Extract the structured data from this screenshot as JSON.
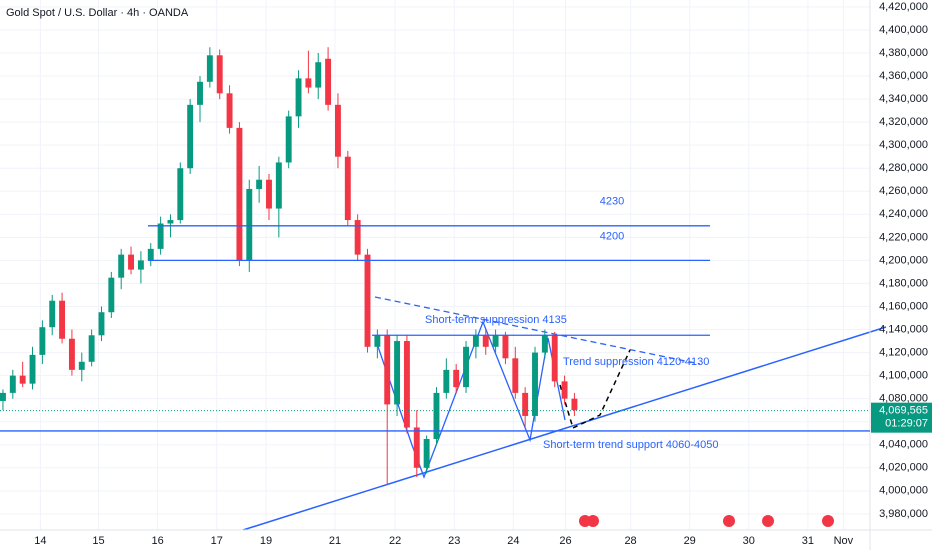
{
  "chart_data": {
    "type": "candlestick",
    "title": "Gold Spot / U.S. Dollar · 4h · OANDA",
    "up_color": "#089981",
    "down_color": "#f23645",
    "line_color": "#2962ff",
    "grid": true,
    "open": [
      4078000,
      4085000,
      4100000,
      4093000,
      4118000,
      4142000,
      4165000,
      4132000,
      4105000,
      4112000,
      4135000,
      4155000,
      4185000,
      4205000,
      4192000,
      4200000,
      4210000,
      4232000,
      4235000,
      4280000,
      4335000,
      4355000,
      4378000,
      4345000,
      4315000,
      4200000,
      4262000,
      4270000,
      4245000,
      4285000,
      4325000,
      4358000,
      4350000,
      4375000,
      4335000,
      4290000,
      4235000,
      4205000,
      4125000,
      4135000,
      4075000,
      4130000,
      4055000,
      4020000,
      4045000,
      4085000,
      4105000,
      4090000,
      4125000,
      4135000,
      4125000,
      4135000,
      4115000,
      4085000,
      4065000,
      4120000,
      4135000,
      4095000,
      4080000
    ],
    "high": [
      4088000,
      4105000,
      4112000,
      4125000,
      4148000,
      4170000,
      4172000,
      4140000,
      4120000,
      4140000,
      4160000,
      4190000,
      4210000,
      4212000,
      4208000,
      4215000,
      4238000,
      4240000,
      4285000,
      4340000,
      4360000,
      4385000,
      4383000,
      4352000,
      4320000,
      4270000,
      4282000,
      4275000,
      4290000,
      4330000,
      4365000,
      4382000,
      4380000,
      4385000,
      4345000,
      4295000,
      4240000,
      4210000,
      4140000,
      4140000,
      4135000,
      4135000,
      4070000,
      4048000,
      4090000,
      4115000,
      4110000,
      4130000,
      4140000,
      4140000,
      4140000,
      4138000,
      4125000,
      4090000,
      4125000,
      4140000,
      4138000,
      4100000,
      4085000
    ],
    "low": [
      4070000,
      4080000,
      4090000,
      4088000,
      4110000,
      4135000,
      4128000,
      4100000,
      4095000,
      4108000,
      4130000,
      4150000,
      4175000,
      4188000,
      4180000,
      4195000,
      4205000,
      4220000,
      4232000,
      4275000,
      4320000,
      4350000,
      4340000,
      4310000,
      4195000,
      4190000,
      4250000,
      4235000,
      4220000,
      4280000,
      4315000,
      4345000,
      4340000,
      4330000,
      4280000,
      4230000,
      4200000,
      4120000,
      4115000,
      4005000,
      4065000,
      4050000,
      4012000,
      4015000,
      4040000,
      4080000,
      4085000,
      4085000,
      4115000,
      4118000,
      4120000,
      4110000,
      4080000,
      4055000,
      4060000,
      4115000,
      4090000,
      4075000,
      4065000
    ],
    "close": [
      4085000,
      4100000,
      4093000,
      4118000,
      4142000,
      4165000,
      4132000,
      4105000,
      4112000,
      4135000,
      4155000,
      4185000,
      4205000,
      4192000,
      4200000,
      4210000,
      4232000,
      4235000,
      4280000,
      4335000,
      4355000,
      4378000,
      4345000,
      4315000,
      4200000,
      4262000,
      4270000,
      4245000,
      4285000,
      4325000,
      4358000,
      4350000,
      4372000,
      4335000,
      4290000,
      4235000,
      4205000,
      4125000,
      4135000,
      4075000,
      4130000,
      4055000,
      4020000,
      4045000,
      4085000,
      4105000,
      4090000,
      4125000,
      4135000,
      4125000,
      4135000,
      4115000,
      4085000,
      4065000,
      4120000,
      4135000,
      4095000,
      4080000,
      4070000
    ],
    "xlim": [
      -0.3,
      88
    ],
    "xticks": [
      {
        "value": 3.8,
        "label": "14"
      },
      {
        "value": 9.7,
        "label": "15"
      },
      {
        "value": 15.7,
        "label": "16"
      },
      {
        "value": 21.7,
        "label": "17"
      },
      {
        "value": 26.7,
        "label": "19"
      },
      {
        "value": 33.7,
        "label": "21"
      },
      {
        "value": 39.8,
        "label": "22"
      },
      {
        "value": 45.8,
        "label": "23"
      },
      {
        "value": 51.8,
        "label": "24"
      },
      {
        "value": 57.1,
        "label": "26"
      },
      {
        "value": 63.7,
        "label": "28"
      },
      {
        "value": 69.7,
        "label": "29"
      },
      {
        "value": 75.7,
        "label": "30"
      },
      {
        "value": 81.7,
        "label": "31"
      },
      {
        "value": 85.3,
        "label": "Nov"
      }
    ],
    "ylim": [
      3966000,
      4426000
    ],
    "yticks": [
      {
        "value": 3980000,
        "label": "3,980,000"
      },
      {
        "value": 4000000,
        "label": "4,000,000"
      },
      {
        "value": 4020000,
        "label": "4,020,000"
      },
      {
        "value": 4040000,
        "label": "4,040,000"
      },
      {
        "value": 4060000,
        "label": "4,060,000"
      },
      {
        "value": 4080000,
        "label": "4,080,000"
      },
      {
        "value": 4100000,
        "label": "4,100,000"
      },
      {
        "value": 4120000,
        "label": "4,120,000"
      },
      {
        "value": 4140000,
        "label": "4,140,000"
      },
      {
        "value": 4160000,
        "label": "4,160,000"
      },
      {
        "value": 4180000,
        "label": "4,180,000"
      },
      {
        "value": 4200000,
        "label": "4,200,000"
      },
      {
        "value": 4220000,
        "label": "4,220,000"
      },
      {
        "value": 4240000,
        "label": "4,240,000"
      },
      {
        "value": 4260000,
        "label": "4,260,000"
      },
      {
        "value": 4280000,
        "label": "4,280,000"
      },
      {
        "value": 4300000,
        "label": "4,300,000"
      },
      {
        "value": 4320000,
        "label": "4,320,000"
      },
      {
        "value": 4340000,
        "label": "4,340,000"
      },
      {
        "value": 4360000,
        "label": "4,360,000"
      },
      {
        "value": 4380000,
        "label": "4,380,000"
      },
      {
        "value": 4400000,
        "label": "4,400,000"
      },
      {
        "value": 4420000,
        "label": "4,420,000"
      }
    ],
    "hlines": [
      {
        "value": 4230000,
        "label": "4230"
      },
      {
        "value": 4200000,
        "label": "4200"
      },
      {
        "value": 4135000,
        "label": "Short-term suppression 4135"
      },
      {
        "value": 4052000,
        "label": "Short-term trend support 4060-4050"
      }
    ],
    "annotations": [
      "Trend suppression 4120-4130"
    ],
    "last_price": {
      "value": 4069565,
      "label": "4,069,565"
    },
    "countdown": "01:29:07"
  }
}
